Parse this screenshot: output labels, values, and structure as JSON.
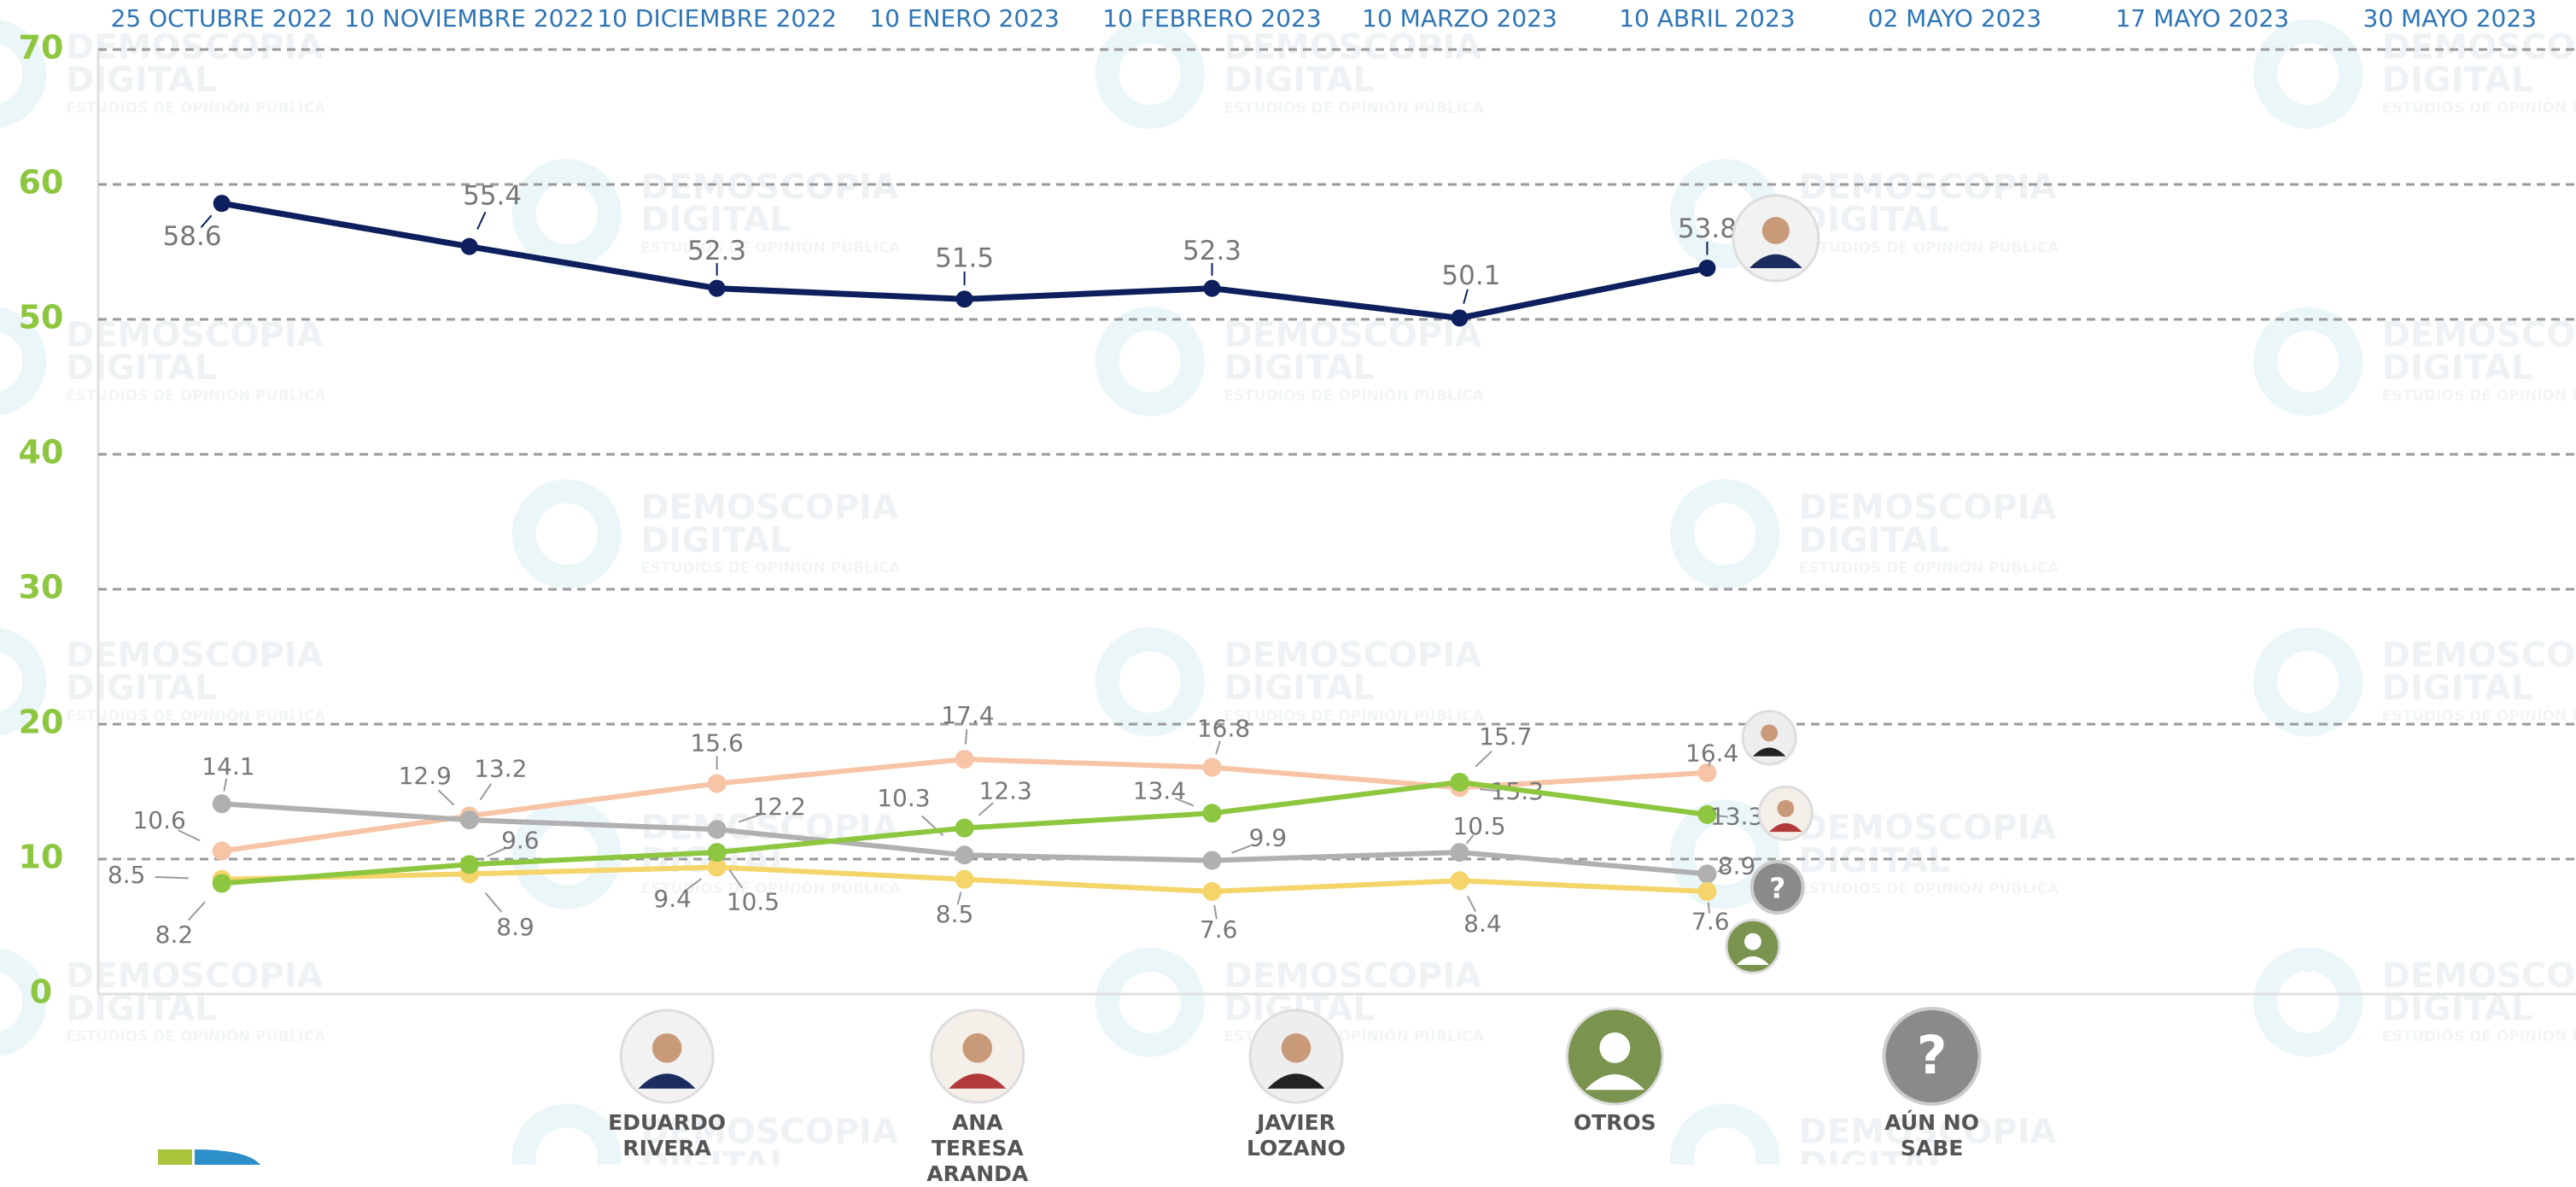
{
  "chart_data": {
    "type": "line",
    "categories": [
      "25 OCTUBRE 2022",
      "10 NOVIEMBRE 2022",
      "10 DICIEMBRE 2022",
      "10 ENERO 2023",
      "10 FEBRERO 2023",
      "10 MARZO 2023",
      "10 ABRIL 2023",
      "02 MAYO 2023",
      "17 MAYO 2023",
      "30 MAYO 2023"
    ],
    "series": [
      {
        "name": "EDUARDO RIVERA",
        "color": "#0d1f5c",
        "values": [
          58.6,
          55.4,
          52.3,
          51.5,
          52.3,
          50.1,
          53.8,
          null,
          null,
          null
        ]
      },
      {
        "name": "ANA TERESA ARANDA",
        "color": "#8dc63f",
        "values": [
          8.2,
          9.6,
          10.5,
          12.3,
          13.4,
          15.7,
          13.3,
          null,
          null,
          null
        ]
      },
      {
        "name": "JAVIER LOZANO",
        "color": "#f7c4a5",
        "values": [
          10.6,
          13.2,
          15.6,
          17.4,
          16.8,
          15.3,
          16.4,
          null,
          null,
          null
        ]
      },
      {
        "name": "OTROS",
        "color": "#f5d46a",
        "values": [
          8.5,
          8.9,
          9.4,
          8.5,
          7.6,
          8.4,
          7.6,
          null,
          null,
          null
        ]
      },
      {
        "name": "AÚN NO SABE",
        "color": "#b0b0b0",
        "values": [
          14.1,
          12.9,
          12.2,
          10.3,
          9.9,
          10.5,
          8.9,
          null,
          null,
          null
        ]
      }
    ],
    "ylim": [
      0,
      70
    ],
    "yticks": [
      0,
      10,
      20,
      30,
      40,
      50,
      60,
      70
    ],
    "grid": true,
    "watermark": {
      "title": "DEMOSCOPIA",
      "subtitle": "DIGITAL",
      "tagline": "ESTUDIOS DE OPINIÓN PÚBLICA"
    }
  }
}
